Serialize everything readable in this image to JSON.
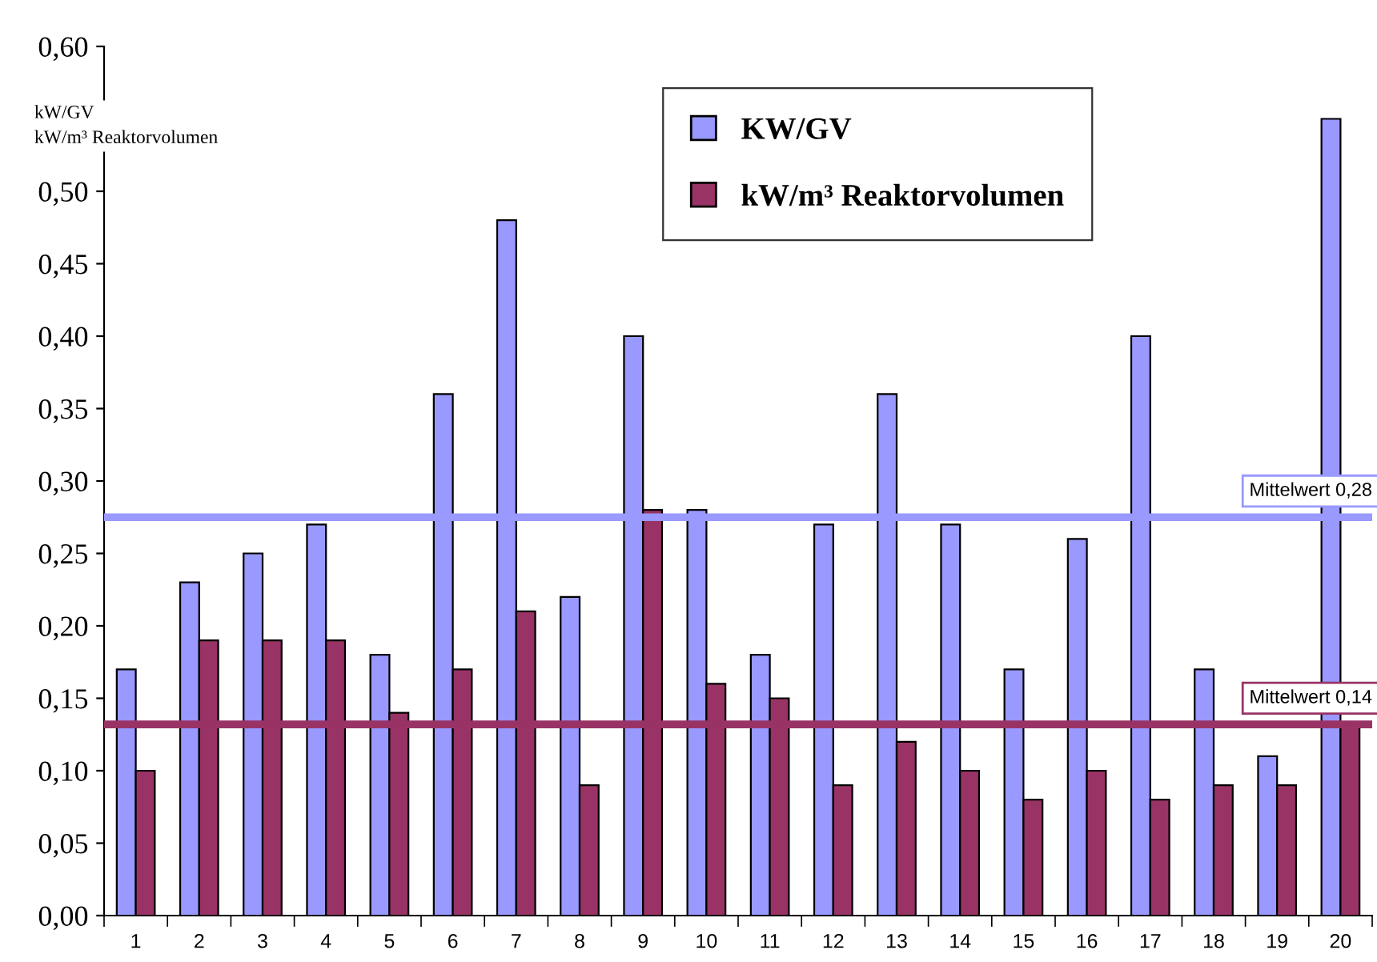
{
  "chart_data": {
    "type": "bar",
    "ylabel": "kW/GV\nkW/m³ Reaktorvolumen",
    "categories": [
      "1",
      "2",
      "3",
      "4",
      "5",
      "6",
      "7",
      "8",
      "9",
      "10",
      "11",
      "12",
      "13",
      "14",
      "15",
      "16",
      "17",
      "18",
      "19",
      "20"
    ],
    "series": [
      {
        "name": "KW/GV",
        "color": "#9999ff",
        "values": [
          0.17,
          0.23,
          0.25,
          0.27,
          0.18,
          0.36,
          0.48,
          0.22,
          0.4,
          0.28,
          0.18,
          0.27,
          0.36,
          0.27,
          0.17,
          0.26,
          0.4,
          0.17,
          0.11,
          0.55
        ]
      },
      {
        "name": "kW/m³ Reaktorvolumen",
        "color": "#993366",
        "values": [
          0.1,
          0.19,
          0.19,
          0.19,
          0.14,
          0.17,
          0.21,
          0.09,
          0.28,
          0.16,
          0.15,
          0.09,
          0.12,
          0.1,
          0.08,
          0.1,
          0.08,
          0.09,
          0.09,
          0.13
        ]
      }
    ],
    "ylim": [
      0,
      0.6
    ],
    "yticks": [
      {
        "value": 0,
        "label": "0,00"
      },
      {
        "value": 0.05,
        "label": "0,05"
      },
      {
        "value": 0.1,
        "label": "0,10"
      },
      {
        "value": 0.15,
        "label": "0,15"
      },
      {
        "value": 0.2,
        "label": "0,20"
      },
      {
        "value": 0.25,
        "label": "0,25"
      },
      {
        "value": 0.3,
        "label": "0,30"
      },
      {
        "value": 0.35,
        "label": "0,35"
      },
      {
        "value": 0.4,
        "label": "0,40"
      },
      {
        "value": 0.45,
        "label": "0,45"
      },
      {
        "value": 0.5,
        "label": "0,50"
      },
      {
        "value": 0.6,
        "label": "0,60"
      }
    ],
    "ref_lines": [
      {
        "axis": "y",
        "value": 0.275,
        "label": "Mittelwert 0,28",
        "color": "#9999ff"
      },
      {
        "axis": "y",
        "value": 0.132,
        "label": "Mittelwert 0,14",
        "color": "#993366"
      }
    ],
    "legend": "top",
    "grid": false
  }
}
